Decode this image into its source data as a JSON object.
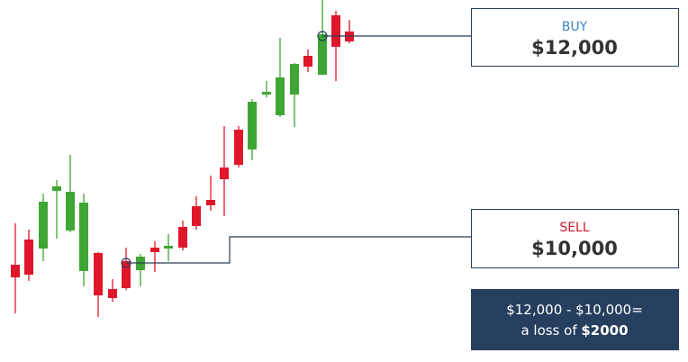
{
  "buy": {
    "label": "BUY",
    "price": "$12,000"
  },
  "sell": {
    "label": "SELL",
    "price": "$10,000"
  },
  "note": {
    "line1": "$12,000 - $10,000=",
    "line2": "a loss of ",
    "amount": "$2000"
  }
}
